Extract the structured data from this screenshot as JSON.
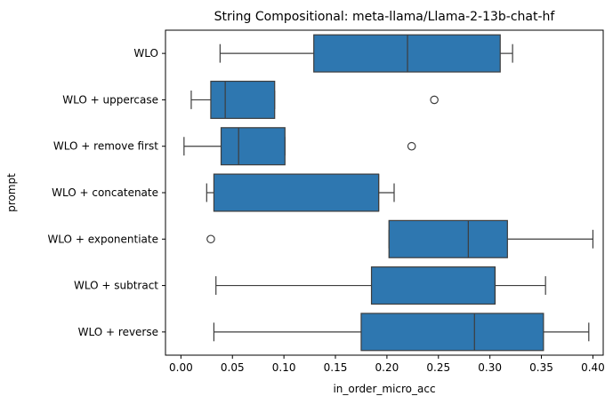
{
  "chart_data": {
    "type": "box",
    "orientation": "horizontal",
    "title": "String Compositional: meta-llama/Llama-2-13b-chat-hf",
    "xlabel": "in_order_micro_acc",
    "ylabel": "prompt",
    "xlim": [
      -0.015,
      0.41
    ],
    "xticks": [
      "0.00",
      "0.05",
      "0.10",
      "0.15",
      "0.20",
      "0.25",
      "0.30",
      "0.35",
      "0.40"
    ],
    "xtick_values": [
      0.0,
      0.05,
      0.1,
      0.15,
      0.2,
      0.25,
      0.3,
      0.35,
      0.4
    ],
    "grid": false,
    "box_color": "#2e77b0",
    "line_color": "#3d3d3d",
    "categories": [
      "WLO",
      "WLO + uppercase",
      "WLO + remove first",
      "WLO + concatenate",
      "WLO + exponentiate",
      "WLO + subtract",
      "WLO + reverse"
    ],
    "boxes": [
      {
        "whislo": 0.038,
        "q1": 0.129,
        "med": 0.22,
        "q3": 0.31,
        "whishi": 0.322,
        "fliers": []
      },
      {
        "whislo": 0.01,
        "q1": 0.029,
        "med": 0.043,
        "q3": 0.091,
        "whishi": 0.091,
        "fliers": [
          0.246
        ]
      },
      {
        "whislo": 0.003,
        "q1": 0.039,
        "med": 0.056,
        "q3": 0.101,
        "whishi": 0.101,
        "fliers": [
          0.224
        ]
      },
      {
        "whislo": 0.025,
        "q1": 0.032,
        "med": 0.192,
        "q3": 0.192,
        "whishi": 0.207,
        "fliers": []
      },
      {
        "whislo": 0.202,
        "q1": 0.202,
        "med": 0.279,
        "q3": 0.317,
        "whishi": 0.4,
        "fliers": [
          0.029
        ]
      },
      {
        "whislo": 0.034,
        "q1": 0.185,
        "med": 0.305,
        "q3": 0.305,
        "whishi": 0.354,
        "fliers": []
      },
      {
        "whislo": 0.032,
        "q1": 0.175,
        "med": 0.285,
        "q3": 0.352,
        "whishi": 0.396,
        "fliers": []
      }
    ]
  }
}
